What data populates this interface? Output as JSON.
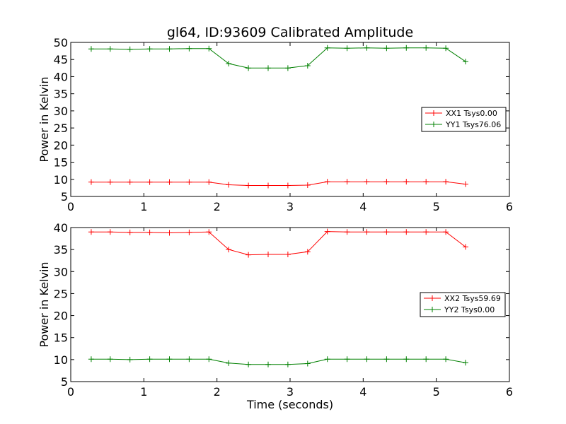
{
  "chart_data": [
    {
      "type": "line",
      "title": "gl64, ID:93609 Calibrated Amplitude",
      "xlabel": "",
      "ylabel": "Power in Kelvin",
      "xlim": [
        0,
        6
      ],
      "ylim": [
        5,
        50
      ],
      "xticks": [
        0,
        1,
        2,
        3,
        4,
        5,
        6
      ],
      "yticks": [
        5,
        10,
        15,
        20,
        25,
        30,
        35,
        40,
        45,
        50
      ],
      "grid": false,
      "legend": "center-right",
      "x": [
        0.28,
        0.54,
        0.81,
        1.08,
        1.35,
        1.62,
        1.89,
        2.16,
        2.43,
        2.7,
        2.97,
        3.24,
        3.51,
        3.78,
        4.05,
        4.32,
        4.59,
        4.86,
        5.13,
        5.4
      ],
      "series": [
        {
          "name": "XX1 Tsys0.00",
          "color": "#ff0000",
          "values": [
            9.2,
            9.2,
            9.2,
            9.2,
            9.2,
            9.2,
            9.2,
            8.4,
            8.2,
            8.2,
            8.2,
            8.3,
            9.3,
            9.3,
            9.3,
            9.3,
            9.3,
            9.3,
            9.3,
            8.6
          ]
        },
        {
          "name": "YY1 Tsys76.06",
          "color": "#008000",
          "values": [
            48.1,
            48.1,
            48.0,
            48.1,
            48.1,
            48.2,
            48.2,
            43.8,
            42.5,
            42.5,
            42.5,
            43.2,
            48.4,
            48.3,
            48.4,
            48.3,
            48.4,
            48.4,
            48.3,
            44.4
          ]
        }
      ]
    },
    {
      "type": "line",
      "title": "",
      "xlabel": "Time (seconds)",
      "ylabel": "Power in Kelvin",
      "xlim": [
        0,
        6
      ],
      "ylim": [
        5,
        40
      ],
      "xticks": [
        0,
        1,
        2,
        3,
        4,
        5,
        6
      ],
      "yticks": [
        5,
        10,
        15,
        20,
        25,
        30,
        35,
        40
      ],
      "grid": false,
      "legend": "center-right",
      "x": [
        0.28,
        0.54,
        0.81,
        1.08,
        1.35,
        1.62,
        1.89,
        2.16,
        2.43,
        2.7,
        2.97,
        3.24,
        3.51,
        3.78,
        4.05,
        4.32,
        4.59,
        4.86,
        5.13,
        5.4
      ],
      "series": [
        {
          "name": "XX2 Tsys59.69",
          "color": "#ff0000",
          "values": [
            39.0,
            39.0,
            38.9,
            38.9,
            38.8,
            38.9,
            39.0,
            35.0,
            33.8,
            33.9,
            33.9,
            34.5,
            39.1,
            39.0,
            39.0,
            39.0,
            39.0,
            39.0,
            39.0,
            35.6
          ]
        },
        {
          "name": "YY2 Tsys0.00",
          "color": "#008000",
          "values": [
            10.1,
            10.1,
            10.0,
            10.1,
            10.1,
            10.1,
            10.1,
            9.2,
            8.9,
            8.9,
            8.9,
            9.1,
            10.1,
            10.1,
            10.1,
            10.1,
            10.1,
            10.1,
            10.1,
            9.3
          ]
        }
      ]
    }
  ]
}
